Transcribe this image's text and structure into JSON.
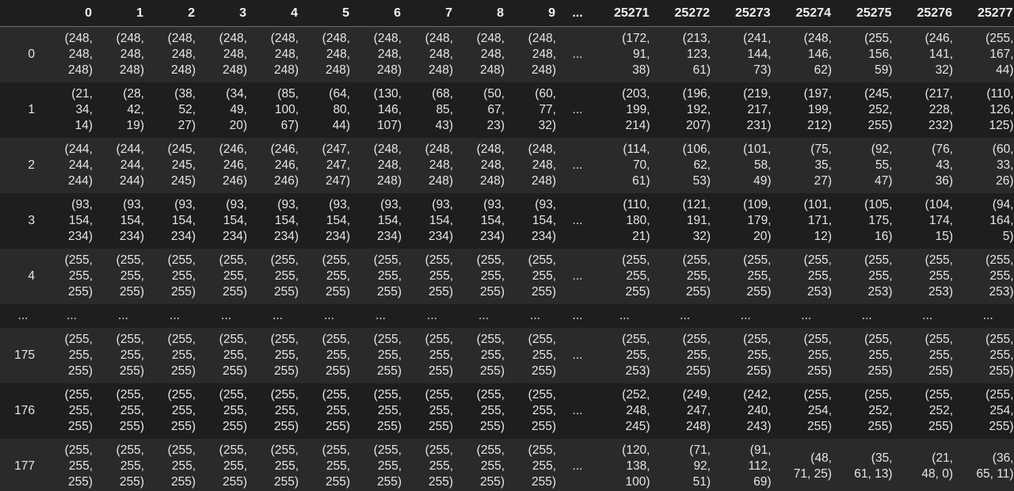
{
  "table": {
    "columns": [
      "0",
      "1",
      "2",
      "3",
      "4",
      "5",
      "6",
      "7",
      "8",
      "9",
      "...",
      "25271",
      "25272",
      "25273",
      "25274",
      "25275",
      "25276",
      "25277"
    ],
    "rows": [
      {
        "index": "0",
        "cells": [
          [
            "(248,",
            "248,",
            "248)"
          ],
          [
            "(248,",
            "248,",
            "248)"
          ],
          [
            "(248,",
            "248,",
            "248)"
          ],
          [
            "(248,",
            "248,",
            "248)"
          ],
          [
            "(248,",
            "248,",
            "248)"
          ],
          [
            "(248,",
            "248,",
            "248)"
          ],
          [
            "(248,",
            "248,",
            "248)"
          ],
          [
            "(248,",
            "248,",
            "248)"
          ],
          [
            "(248,",
            "248,",
            "248)"
          ],
          [
            "(248,",
            "248,",
            "248)"
          ],
          [
            "..."
          ],
          [
            "(172,",
            "91,",
            "38)"
          ],
          [
            "(213,",
            "123,",
            "61)"
          ],
          [
            "(241,",
            "144,",
            "73)"
          ],
          [
            "(248,",
            "146,",
            "62)"
          ],
          [
            "(255,",
            "156,",
            "59)"
          ],
          [
            "(246,",
            "141,",
            "32)"
          ],
          [
            "(255,",
            "167,",
            "44)"
          ]
        ]
      },
      {
        "index": "1",
        "cells": [
          [
            "(21,",
            "34,",
            "14)"
          ],
          [
            "(28,",
            "42,",
            "19)"
          ],
          [
            "(38,",
            "52,",
            "27)"
          ],
          [
            "(34,",
            "49,",
            "20)"
          ],
          [
            "(85,",
            "100,",
            "67)"
          ],
          [
            "(64,",
            "80,",
            "44)"
          ],
          [
            "(130,",
            "146,",
            "107)"
          ],
          [
            "(68,",
            "85,",
            "43)"
          ],
          [
            "(50,",
            "67,",
            "23)"
          ],
          [
            "(60,",
            "77,",
            "32)"
          ],
          [
            "..."
          ],
          [
            "(203,",
            "199,",
            "214)"
          ],
          [
            "(196,",
            "192,",
            "207)"
          ],
          [
            "(219,",
            "217,",
            "231)"
          ],
          [
            "(197,",
            "199,",
            "212)"
          ],
          [
            "(245,",
            "252,",
            "255)"
          ],
          [
            "(217,",
            "228,",
            "232)"
          ],
          [
            "(110,",
            "126,",
            "125)"
          ]
        ]
      },
      {
        "index": "2",
        "cells": [
          [
            "(244,",
            "244,",
            "244)"
          ],
          [
            "(244,",
            "244,",
            "244)"
          ],
          [
            "(245,",
            "245,",
            "245)"
          ],
          [
            "(246,",
            "246,",
            "246)"
          ],
          [
            "(246,",
            "246,",
            "246)"
          ],
          [
            "(247,",
            "247,",
            "247)"
          ],
          [
            "(248,",
            "248,",
            "248)"
          ],
          [
            "(248,",
            "248,",
            "248)"
          ],
          [
            "(248,",
            "248,",
            "248)"
          ],
          [
            "(248,",
            "248,",
            "248)"
          ],
          [
            "..."
          ],
          [
            "(114,",
            "70,",
            "61)"
          ],
          [
            "(106,",
            "62,",
            "53)"
          ],
          [
            "(101,",
            "58,",
            "49)"
          ],
          [
            "(75,",
            "35,",
            "27)"
          ],
          [
            "(92,",
            "55,",
            "47)"
          ],
          [
            "(76,",
            "43,",
            "36)"
          ],
          [
            "(60,",
            "33,",
            "26)"
          ]
        ]
      },
      {
        "index": "3",
        "cells": [
          [
            "(93,",
            "154,",
            "234)"
          ],
          [
            "(93,",
            "154,",
            "234)"
          ],
          [
            "(93,",
            "154,",
            "234)"
          ],
          [
            "(93,",
            "154,",
            "234)"
          ],
          [
            "(93,",
            "154,",
            "234)"
          ],
          [
            "(93,",
            "154,",
            "234)"
          ],
          [
            "(93,",
            "154,",
            "234)"
          ],
          [
            "(93,",
            "154,",
            "234)"
          ],
          [
            "(93,",
            "154,",
            "234)"
          ],
          [
            "(93,",
            "154,",
            "234)"
          ],
          [
            "..."
          ],
          [
            "(110,",
            "180,",
            "21)"
          ],
          [
            "(121,",
            "191,",
            "32)"
          ],
          [
            "(109,",
            "179,",
            "20)"
          ],
          [
            "(101,",
            "171,",
            "12)"
          ],
          [
            "(105,",
            "175,",
            "16)"
          ],
          [
            "(104,",
            "174,",
            "15)"
          ],
          [
            "(94,",
            "164,",
            "5)"
          ]
        ]
      },
      {
        "index": "4",
        "cells": [
          [
            "(255,",
            "255,",
            "255)"
          ],
          [
            "(255,",
            "255,",
            "255)"
          ],
          [
            "(255,",
            "255,",
            "255)"
          ],
          [
            "(255,",
            "255,",
            "255)"
          ],
          [
            "(255,",
            "255,",
            "255)"
          ],
          [
            "(255,",
            "255,",
            "255)"
          ],
          [
            "(255,",
            "255,",
            "255)"
          ],
          [
            "(255,",
            "255,",
            "255)"
          ],
          [
            "(255,",
            "255,",
            "255)"
          ],
          [
            "(255,",
            "255,",
            "255)"
          ],
          [
            "..."
          ],
          [
            "(255,",
            "255,",
            "255)"
          ],
          [
            "(255,",
            "255,",
            "255)"
          ],
          [
            "(255,",
            "255,",
            "255)"
          ],
          [
            "(255,",
            "255,",
            "253)"
          ],
          [
            "(255,",
            "255,",
            "253)"
          ],
          [
            "(255,",
            "255,",
            "253)"
          ],
          [
            "(255,",
            "255,",
            "253)"
          ]
        ]
      },
      {
        "index": "...",
        "ellipsis": true,
        "cells": [
          [
            "..."
          ],
          [
            "..."
          ],
          [
            "..."
          ],
          [
            "..."
          ],
          [
            "..."
          ],
          [
            "..."
          ],
          [
            "..."
          ],
          [
            "..."
          ],
          [
            "..."
          ],
          [
            "..."
          ],
          [
            "..."
          ],
          [
            "..."
          ],
          [
            "..."
          ],
          [
            "..."
          ],
          [
            "..."
          ],
          [
            "..."
          ],
          [
            "..."
          ],
          [
            "..."
          ]
        ]
      },
      {
        "index": "175",
        "cells": [
          [
            "(255,",
            "255,",
            "255)"
          ],
          [
            "(255,",
            "255,",
            "255)"
          ],
          [
            "(255,",
            "255,",
            "255)"
          ],
          [
            "(255,",
            "255,",
            "255)"
          ],
          [
            "(255,",
            "255,",
            "255)"
          ],
          [
            "(255,",
            "255,",
            "255)"
          ],
          [
            "(255,",
            "255,",
            "255)"
          ],
          [
            "(255,",
            "255,",
            "255)"
          ],
          [
            "(255,",
            "255,",
            "255)"
          ],
          [
            "(255,",
            "255,",
            "255)"
          ],
          [
            "..."
          ],
          [
            "(255,",
            "255,",
            "253)"
          ],
          [
            "(255,",
            "255,",
            "255)"
          ],
          [
            "(255,",
            "255,",
            "255)"
          ],
          [
            "(255,",
            "255,",
            "255)"
          ],
          [
            "(255,",
            "255,",
            "255)"
          ],
          [
            "(255,",
            "255,",
            "255)"
          ],
          [
            "(255,",
            "255,",
            "255)"
          ]
        ]
      },
      {
        "index": "176",
        "cells": [
          [
            "(255,",
            "255,",
            "255)"
          ],
          [
            "(255,",
            "255,",
            "255)"
          ],
          [
            "(255,",
            "255,",
            "255)"
          ],
          [
            "(255,",
            "255,",
            "255)"
          ],
          [
            "(255,",
            "255,",
            "255)"
          ],
          [
            "(255,",
            "255,",
            "255)"
          ],
          [
            "(255,",
            "255,",
            "255)"
          ],
          [
            "(255,",
            "255,",
            "255)"
          ],
          [
            "(255,",
            "255,",
            "255)"
          ],
          [
            "(255,",
            "255,",
            "255)"
          ],
          [
            "..."
          ],
          [
            "(252,",
            "248,",
            "245)"
          ],
          [
            "(249,",
            "247,",
            "248)"
          ],
          [
            "(242,",
            "240,",
            "243)"
          ],
          [
            "(255,",
            "254,",
            "255)"
          ],
          [
            "(255,",
            "252,",
            "255)"
          ],
          [
            "(255,",
            "252,",
            "255)"
          ],
          [
            "(255,",
            "254,",
            "255)"
          ]
        ]
      },
      {
        "index": "177",
        "cells": [
          [
            "(255,",
            "255,",
            "255)"
          ],
          [
            "(255,",
            "255,",
            "255)"
          ],
          [
            "(255,",
            "255,",
            "255)"
          ],
          [
            "(255,",
            "255,",
            "255)"
          ],
          [
            "(255,",
            "255,",
            "255)"
          ],
          [
            "(255,",
            "255,",
            "255)"
          ],
          [
            "(255,",
            "255,",
            "255)"
          ],
          [
            "(255,",
            "255,",
            "255)"
          ],
          [
            "(255,",
            "255,",
            "255)"
          ],
          [
            "(255,",
            "255,",
            "255)"
          ],
          [
            "..."
          ],
          [
            "(120,",
            "138,",
            "100)"
          ],
          [
            "(71,",
            "92,",
            "51)"
          ],
          [
            "(91,",
            "112,",
            "69)"
          ],
          [
            "(48,",
            "71, 25)"
          ],
          [
            "(35,",
            "61, 13)"
          ],
          [
            "(21,",
            "48, 0)"
          ],
          [
            "(36,",
            "65, 11)"
          ]
        ]
      }
    ]
  },
  "colors": {
    "background": "#1e1e1e",
    "stripe": "#2a2a2a",
    "text": "#e6e6e6",
    "header_border": "#6a6a6a"
  }
}
